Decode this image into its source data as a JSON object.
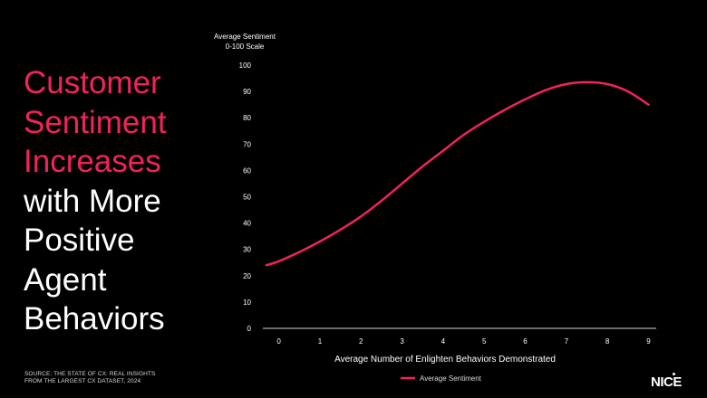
{
  "headline": {
    "accent_lines": [
      "Customer",
      "Sentiment",
      "Increases"
    ],
    "plain_lines": [
      "with More",
      "Positive",
      "Agent",
      "Behaviors"
    ]
  },
  "source": {
    "line1": "Source: THE STATE OF CX: REAL INSIGHTS",
    "line2": "FROM THE LARGEST CX DATASET, 2024"
  },
  "logo": "NICE",
  "colors": {
    "accent": "#f0235a",
    "background": "#000000",
    "text": "#ffffff"
  },
  "chart_data": {
    "type": "line",
    "title": "",
    "ylabel_lines": [
      "Average Sentiment",
      "0-100 Scale"
    ],
    "xlabel": "Average Number of Enlighten Behaviors Demonstrated",
    "x": [
      0,
      1,
      2,
      3,
      4,
      5,
      6,
      7,
      8,
      9
    ],
    "xlim": [
      -0.3,
      9.1
    ],
    "ylim": [
      0,
      100
    ],
    "yticks": [
      0,
      10,
      20,
      30,
      40,
      50,
      60,
      70,
      80,
      90,
      100
    ],
    "grid": false,
    "legend_position": "bottom-center",
    "series": [
      {
        "name": "Average Sentiment",
        "color": "#f0235a",
        "x": [
          -0.3,
          0,
          0.5,
          1,
          1.5,
          2,
          2.5,
          3,
          3.5,
          4,
          4.5,
          5,
          5.5,
          6,
          6.5,
          7,
          7.5,
          8,
          8.5,
          9
        ],
        "values": [
          24,
          25.5,
          29,
          33,
          37.5,
          42.5,
          48.5,
          55,
          61.5,
          67.5,
          73.5,
          78.5,
          83,
          87,
          90.5,
          92.8,
          93.5,
          92.8,
          90,
          85
        ]
      }
    ]
  }
}
